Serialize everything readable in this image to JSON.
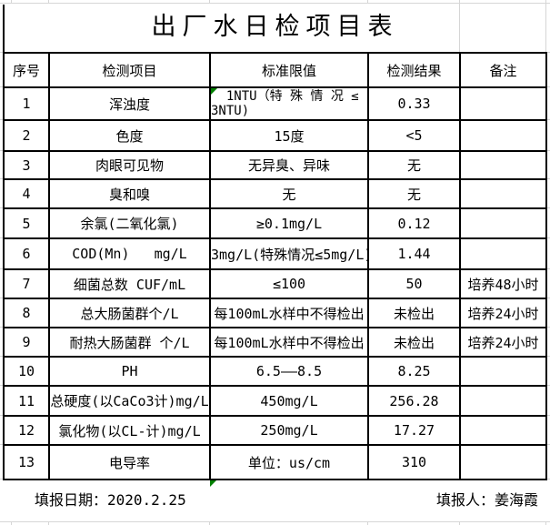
{
  "title": "出厂水日检项目表",
  "table": {
    "headers": [
      "序号",
      "检测项目",
      "标准限值",
      "检测结果",
      "备注"
    ],
    "rows": [
      {
        "no": "1",
        "item": "浑浊度",
        "standard": "  1NTU（特 殊 情 况 ≤\n3NTU)",
        "result": "0.33",
        "remark": "",
        "flag": true
      },
      {
        "no": "2",
        "item": "色度",
        "standard": "15度",
        "result": "<5",
        "remark": "",
        "flag": false
      },
      {
        "no": "3",
        "item": "肉眼可见物",
        "standard": "无异臭、异味",
        "result": "无",
        "remark": "",
        "flag": false
      },
      {
        "no": "4",
        "item": "臭和嗅",
        "standard": "无",
        "result": "无",
        "remark": "",
        "flag": false
      },
      {
        "no": "5",
        "item": "余氯(二氧化氯)",
        "standard": "≥0.1mg/L",
        "result": "0.12",
        "remark": "",
        "flag": false
      },
      {
        "no": "6",
        "item": "COD(Mn)   mg/L",
        "standard": "3mg/L(特殊情况≤5mg/L)",
        "result": "1.44",
        "remark": "",
        "flag": false
      },
      {
        "no": "7",
        "item": "细菌总数 CUF/mL",
        "standard": "≤100",
        "result": "50",
        "remark": "培养48小时",
        "flag": false
      },
      {
        "no": "8",
        "item": "总大肠菌群个/L",
        "standard": "每100mL水样中不得检出",
        "result": "未检出",
        "remark": "培养24小时",
        "flag": false
      },
      {
        "no": "9",
        "item": "耐热大肠菌群 个/L",
        "standard": "每100mL水样中不得检出",
        "result": "未检出",
        "remark": "培养24小时",
        "flag": false
      },
      {
        "no": "10",
        "item": "PH",
        "standard": "6.5——8.5",
        "result": "8.25",
        "remark": "",
        "flag": false
      },
      {
        "no": "11",
        "item": "总硬度(以CaCo3计)mg/L",
        "standard": "450mg/L",
        "result": "256.28",
        "remark": "",
        "flag": false
      },
      {
        "no": "12",
        "item": "氯化物(以CL-计)mg/L",
        "standard": "250mg/L",
        "result": "17.27",
        "remark": "",
        "flag": false
      },
      {
        "no": "13",
        "item": "电导率",
        "standard": "单位：us/cm",
        "result": "310",
        "remark": "",
        "flag": false
      }
    ]
  },
  "footer": {
    "date_label": "填报日期：2020.2.25",
    "reporter_label": "填报人：姜海霞"
  },
  "colors": {
    "error_flag_green": "#008000",
    "gridline_gray": "#d6d6d6",
    "table_border": "#000000",
    "text": "#000000",
    "background": "#ffffff"
  }
}
